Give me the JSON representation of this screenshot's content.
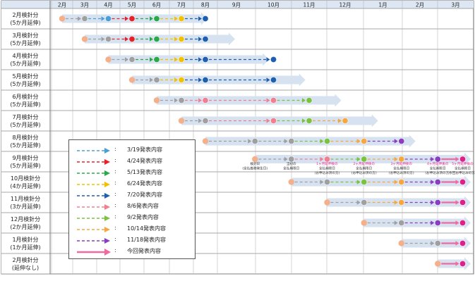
{
  "months": [
    "2月",
    "3月",
    "4月",
    "5月",
    "6月",
    "7月",
    "8月",
    "9月",
    "10月",
    "11月",
    "12月",
    "1月",
    "2月",
    "3月"
  ],
  "rows": [
    {
      "line1": "2月検針分",
      "line2": "(5か月延伸)"
    },
    {
      "line1": "3月検針分",
      "line2": "(5か月延伸)"
    },
    {
      "line1": "4月検針分",
      "line2": "(5か月延伸)"
    },
    {
      "line1": "5月検針分",
      "line2": "(5か月延伸)"
    },
    {
      "line1": "6月検針分",
      "line2": "(5か月延伸)"
    },
    {
      "line1": "7月検針分",
      "line2": "(5か月延伸)"
    },
    {
      "line1": "8月検針分",
      "line2": "(5か月延伸)"
    },
    {
      "line1": "9月検針分",
      "line2": "(5か月延伸)"
    },
    {
      "line1": "10月検針分",
      "line2": "(4か月延伸)"
    },
    {
      "line1": "11月検針分",
      "line2": "(3か月延伸)"
    },
    {
      "line1": "12月検針分",
      "line2": "(2か月延伸)"
    },
    {
      "line1": "1月検針分",
      "line2": "(1か月延伸)"
    },
    {
      "line1": "2月検針分",
      "line2": "(延伸なし)"
    }
  ],
  "colors": {
    "0319": "#4a9fd5",
    "0424": "#e8202a",
    "0513": "#2aa84a",
    "0624": "#f2c200",
    "0720": "#1f5fb0",
    "0806": "#f08090",
    "0902": "#7cc242",
    "1014": "#f5a742",
    "1118": "#8a3fc0",
    "current": "#f06aa0",
    "start": "#f5b08a",
    "grey": "#a0a0a0",
    "navy": "#1f3864",
    "bar": "#d6e2f0",
    "magenta": "#e0208a"
  },
  "legend": [
    {
      "key": "0319",
      "colon": ":",
      "label": "3/19発表内容",
      "style": "dashed"
    },
    {
      "key": "0424",
      "colon": ":",
      "label": "4/24発表内容",
      "style": "dashed"
    },
    {
      "key": "0513",
      "colon": ":",
      "label": "5/13発表内容",
      "style": "dashed"
    },
    {
      "key": "0624",
      "colon": ":",
      "label": "6/24発表内容",
      "style": "dashed"
    },
    {
      "key": "0720",
      "colon": ":",
      "label": "7/20発表内容",
      "style": "dashed"
    },
    {
      "key": "0806",
      "colon": ":",
      "label": "8/6発表内容",
      "style": "dashed"
    },
    {
      "key": "0902",
      "colon": ":",
      "label": "9/2発表内容",
      "style": "dashed"
    },
    {
      "key": "1014",
      "colon": ":",
      "label": "10/14発表内容",
      "style": "dashed"
    },
    {
      "key": "1118",
      "colon": ":",
      "label": "11/18発表内容",
      "style": "dashed"
    },
    {
      "key": "current",
      "colon": ":",
      "label": "今回発表内容",
      "style": "solid"
    }
  ],
  "notes": [
    {
      "col": 7.5,
      "color": "#333333",
      "lines": [
        "検針日",
        "(全払義務発生日)"
      ]
    },
    {
      "col": 8.5,
      "color": "#333333",
      "lines": [
        "当初の",
        "全払期限日"
      ]
    },
    {
      "col": 9.5,
      "color": "#e0208a",
      "lines": [
        "1ヶ月延伸後の",
        "全払期限日",
        "(お申込み済の方)"
      ]
    },
    {
      "col": 10.5,
      "color": "#e0208a",
      "lines": [
        "2ヶ月延伸後の",
        "全払期限日",
        "(お申込み済の方)"
      ]
    },
    {
      "col": 11.5,
      "color": "#e0208a",
      "lines": [
        "3ヶ月延伸後の",
        "全払期限日",
        "(お申込み済の方)"
      ]
    },
    {
      "col": 12.5,
      "color": "#e0208a",
      "lines": [
        "4ヶ月延伸後の",
        "全払期限日",
        "(お申込み済の方)"
      ]
    },
    {
      "col": 13.5,
      "color": "#e0208a",
      "lines": [
        "5ヶ月延伸後の",
        "全払期限日",
        "今回お申込みの方)"
      ]
    }
  ],
  "timeline": [
    {
      "start": 0,
      "dots": [
        [
          1,
          "grey"
        ],
        [
          2,
          "0319"
        ],
        [
          3,
          "0424"
        ],
        [
          4,
          "0513"
        ],
        [
          5,
          "0624"
        ],
        [
          6,
          "0720"
        ]
      ],
      "end": 6
    },
    {
      "start": 1,
      "dots": [
        [
          2,
          "grey"
        ],
        [
          3,
          "0424"
        ],
        [
          4,
          "0513"
        ],
        [
          5,
          "0624"
        ],
        [
          6,
          "0720"
        ]
      ],
      "end": 7
    },
    {
      "start": 2,
      "dots": [
        [
          3,
          "grey"
        ],
        [
          4,
          "0513"
        ],
        [
          5,
          "0624"
        ],
        [
          6,
          "0720"
        ],
        [
          8,
          "0720"
        ]
      ],
      "end": 8
    },
    {
      "start": 3,
      "dots": [
        [
          4,
          "grey"
        ],
        [
          5,
          "0624"
        ],
        [
          6,
          "0720"
        ],
        [
          8,
          "0720"
        ]
      ],
      "end": 9
    },
    {
      "start": 4,
      "dots": [
        [
          5,
          "grey"
        ],
        [
          6,
          "0806"
        ],
        [
          8,
          "0806"
        ],
        [
          9,
          "0902"
        ]
      ],
      "end": 10
    },
    {
      "start": 5,
      "dots": [
        [
          6,
          "grey"
        ],
        [
          8,
          "0806"
        ],
        [
          9,
          "0902"
        ],
        [
          10,
          "1014"
        ]
      ],
      "end": 11
    },
    {
      "start": 6,
      "dots": [
        [
          7.5,
          "grey"
        ],
        [
          8.5,
          "grey"
        ],
        [
          9.5,
          "0902"
        ],
        [
          10.5,
          "1014"
        ],
        [
          11.5,
          "1118"
        ]
      ],
      "end": 12
    },
    {
      "start": 7.5,
      "dots": [
        [
          8.5,
          "grey"
        ],
        [
          9.5,
          "0806"
        ],
        [
          10.5,
          "0902"
        ],
        [
          11.5,
          "1014"
        ],
        [
          12.5,
          "1118"
        ],
        [
          13.5,
          "magenta"
        ]
      ],
      "end": 14
    },
    {
      "start": 8.5,
      "dots": [
        [
          9.5,
          "grey"
        ],
        [
          10.5,
          "0902"
        ],
        [
          11.5,
          "1014"
        ],
        [
          12.5,
          "1118"
        ],
        [
          13.5,
          "magenta"
        ]
      ],
      "end": 14
    },
    {
      "start": 9.5,
      "dots": [
        [
          10.5,
          "grey"
        ],
        [
          11.5,
          "1014"
        ],
        [
          12.5,
          "1118"
        ],
        [
          13.5,
          "magenta"
        ]
      ],
      "end": 14
    },
    {
      "start": 10.5,
      "dots": [
        [
          11.5,
          "grey"
        ],
        [
          12.5,
          "1118"
        ],
        [
          13.5,
          "magenta"
        ]
      ],
      "end": 14
    },
    {
      "start": 11.5,
      "dots": [
        [
          12.5,
          "grey"
        ],
        [
          13.5,
          "magenta"
        ]
      ],
      "end": 14
    },
    {
      "start": 12.5,
      "dots": [
        [
          13.5,
          "magenta"
        ]
      ],
      "end": 14
    }
  ]
}
